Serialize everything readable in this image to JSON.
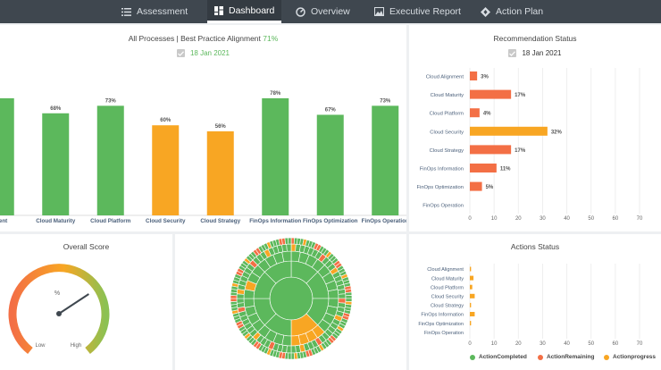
{
  "nav": {
    "items": [
      {
        "label": "Assessment",
        "icon": "list-icon"
      },
      {
        "label": "Dashboard",
        "icon": "grid-icon",
        "active": true
      },
      {
        "label": "Overview",
        "icon": "gauge-icon"
      },
      {
        "label": "Executive Report",
        "icon": "image-icon"
      },
      {
        "label": "Action Plan",
        "icon": "compass-icon"
      }
    ]
  },
  "alignment": {
    "title": "All Processes | Best Practice Alignment",
    "percent": "71%",
    "date": "18 Jan 2021"
  },
  "recommendation": {
    "title": "Recommendation Status",
    "date": "18 Jan 2021"
  },
  "overall_score": {
    "title": "Overall Score",
    "unit": "%",
    "low_label": "Low",
    "high_label": "High"
  },
  "actions": {
    "title": "Actions Status",
    "legend": [
      {
        "label": "ActionCompleted",
        "color": "#5cb85c"
      },
      {
        "label": "ActionRemaining",
        "color": "#f36f45"
      },
      {
        "label": "Actionprogress",
        "color": "#f8a623"
      }
    ]
  },
  "colors": {
    "green": "#5cb85c",
    "orange": "#f8a623",
    "red": "#f36f45",
    "nav": "#3f474f"
  },
  "chart_data": [
    {
      "type": "bar",
      "categories": [
        "Cloud Alignment",
        "Cloud Maturity",
        "Cloud Platform",
        "Cloud Security",
        "Cloud Strategy",
        "FinOps Information",
        "FinOps Optimization",
        "FinOps Operation"
      ],
      "category_tick_labels": [
        "ment",
        "Cloud Maturity",
        "Cloud Platform",
        "Cloud Security",
        "Cloud Strategy",
        "FinOps Information",
        "FinOps Optimization",
        "FinOps Operation"
      ],
      "values": [
        78,
        68,
        73,
        60,
        56,
        78,
        67,
        73
      ],
      "value_labels": [
        "",
        "68%",
        "73%",
        "60%",
        "56%",
        "78%",
        "67%",
        "73%"
      ],
      "colors": [
        "#5cb85c",
        "#5cb85c",
        "#5cb85c",
        "#f8a623",
        "#f8a623",
        "#5cb85c",
        "#5cb85c",
        "#5cb85c"
      ],
      "ylim": [
        0,
        100
      ]
    },
    {
      "type": "bar",
      "orientation": "horizontal",
      "categories": [
        "Cloud Alignment",
        "Cloud Maturity",
        "Cloud Platform",
        "Cloud Security",
        "Cloud Strategy",
        "FinOps Information",
        "FinOps Optimization",
        "FinOps Operation"
      ],
      "values": [
        3,
        17,
        4,
        32,
        17,
        11,
        5,
        0
      ],
      "value_labels": [
        "3%",
        "17%",
        "4%",
        "32%",
        "17%",
        "11%",
        "5%",
        ""
      ],
      "colors": [
        "#f36f45",
        "#f36f45",
        "#f36f45",
        "#f8a623",
        "#f36f45",
        "#f36f45",
        "#f36f45",
        "#f36f45"
      ],
      "xlim": [
        0,
        70
      ],
      "xticks": [
        "0",
        "10",
        "20",
        "30",
        "40",
        "50",
        "60",
        "70"
      ],
      "grid": true
    },
    {
      "type": "bar",
      "orientation": "horizontal",
      "stacked": true,
      "categories": [
        "Cloud Alignment",
        "Cloud Maturity",
        "Cloud Platform",
        "Cloud Security",
        "Cloud Strategy",
        "FinOps Information",
        "FinOps Optimization",
        "FinOps Operation"
      ],
      "series": [
        {
          "name": "ActionCompleted",
          "values": [
            0,
            0,
            0,
            0,
            0,
            0,
            0,
            0
          ]
        },
        {
          "name": "ActionRemaining",
          "values": [
            0,
            0,
            0,
            0,
            0,
            0,
            0,
            0
          ]
        },
        {
          "name": "Actionprogress",
          "values": [
            0.5,
            1.5,
            1,
            2,
            0.5,
            2,
            0.5,
            0
          ]
        }
      ],
      "xlim": [
        0,
        70
      ],
      "xticks": [
        "0",
        "10",
        "20",
        "30",
        "40",
        "50",
        "60",
        "70"
      ],
      "grid": true
    },
    {
      "type": "gauge",
      "value": 71,
      "range": [
        0,
        100
      ]
    }
  ]
}
